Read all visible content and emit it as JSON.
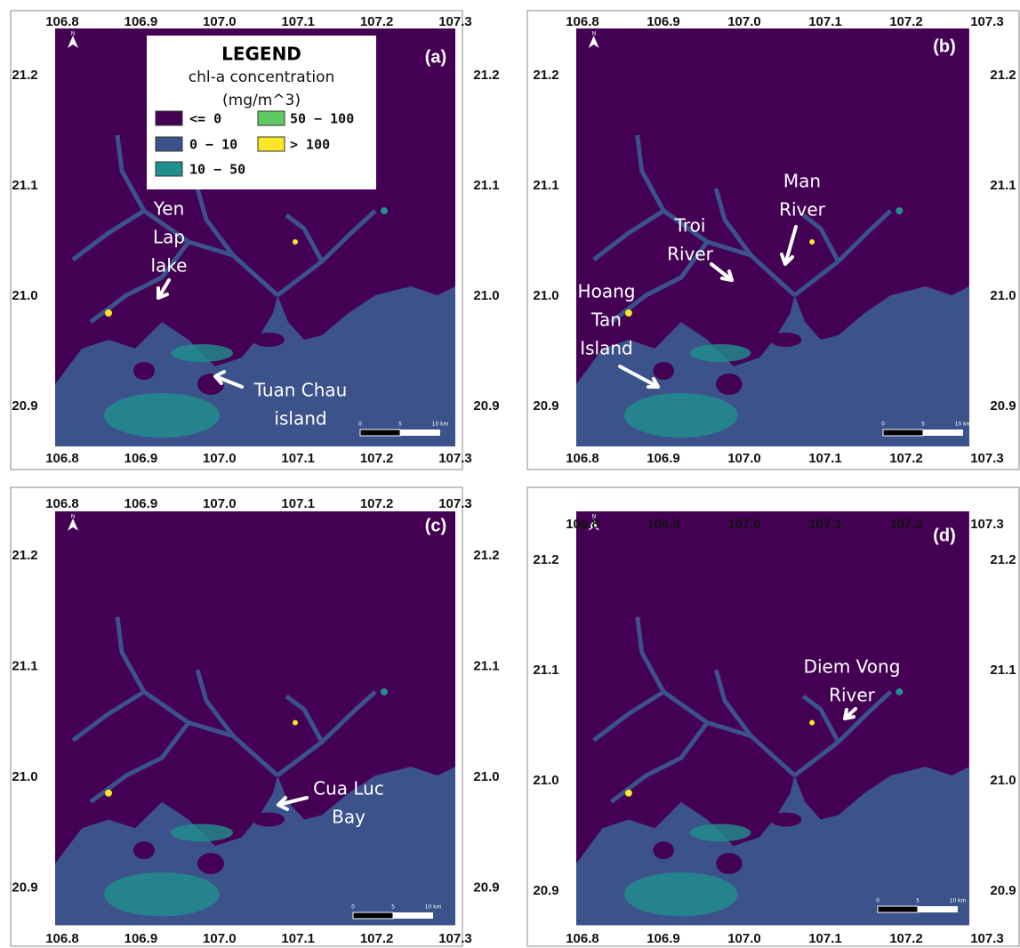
{
  "x_ticks": [
    "106.8",
    "106.9",
    "107.0",
    "107.1",
    "107.2",
    "107.3"
  ],
  "y_ticks": [
    "21.2",
    "21.1",
    "21.0",
    "20.9"
  ],
  "north_label": "N",
  "scale_bar": [
    "0",
    "5",
    "10 km"
  ],
  "legend": {
    "title": "LEGEND",
    "subtitle": "chl-a concentration",
    "units": "(mg/m^3)",
    "items": [
      "<= 0",
      "0 − 10",
      "10 − 50",
      "50 − 100",
      "> 100"
    ]
  },
  "panels": [
    {
      "label": "(a)",
      "annotations": [
        [
          "Yen",
          "Lap",
          "lake"
        ],
        [
          "Tuan Chau",
          "island"
        ]
      ]
    },
    {
      "label": "(b)",
      "annotations": [
        [
          "Man",
          "River"
        ],
        [
          "Troi",
          "River"
        ],
        [
          "Hoang",
          "Tan",
          "Island"
        ]
      ]
    },
    {
      "label": "(c)",
      "annotations": [
        [
          "Cua Luc",
          "Bay"
        ]
      ]
    },
    {
      "label": "(d)",
      "annotations": [
        [
          "Diem Vong",
          "River"
        ]
      ]
    }
  ]
}
